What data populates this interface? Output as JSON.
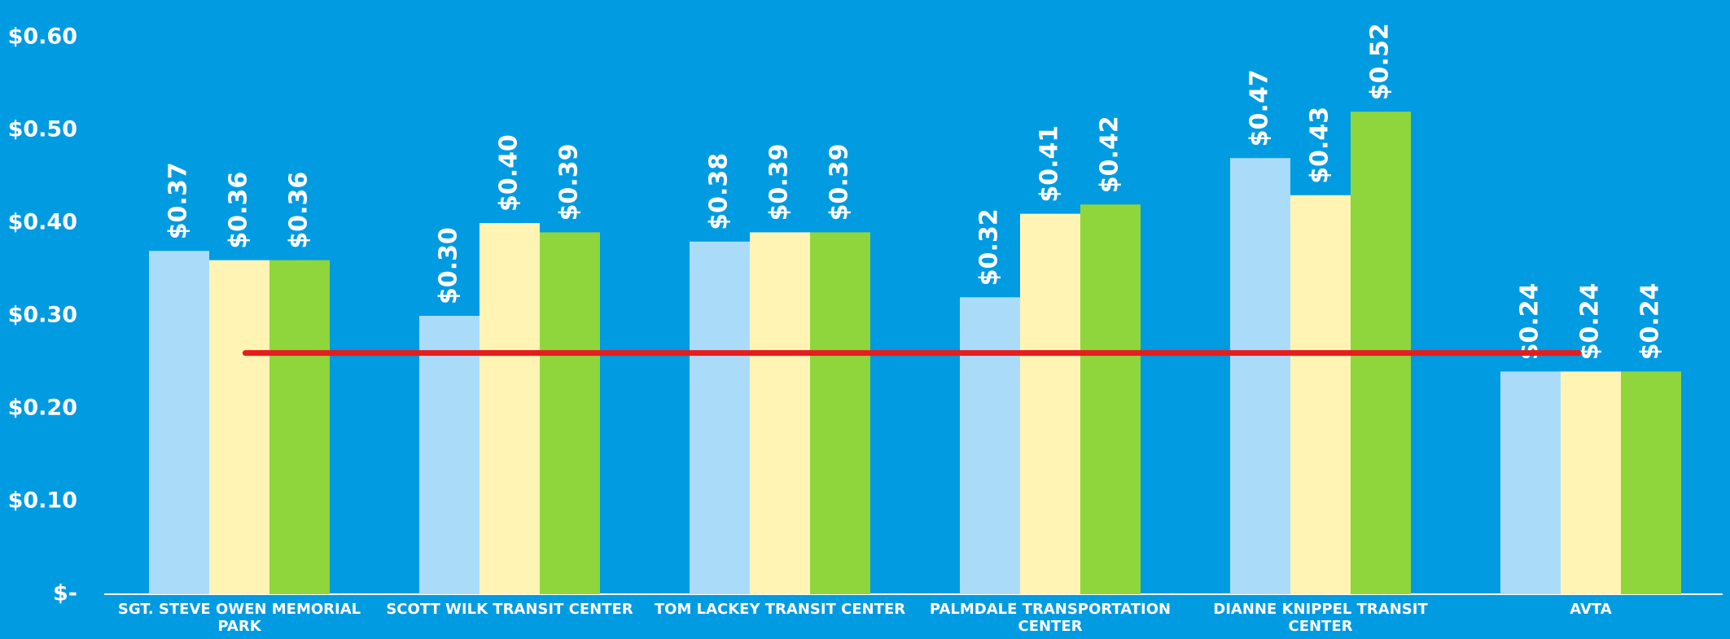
{
  "chart_data": {
    "type": "bar",
    "categories": [
      "SGT. STEVE OWEN MEMORIAL PARK",
      "SCOTT WILK TRANSIT CENTER",
      "TOM LACKEY TRANSIT CENTER",
      "PALMDALE TRANSPORTATION CENTER",
      "DIANNE KNIPPEL TRANSIT CENTER",
      "AVTA"
    ],
    "series": [
      {
        "color": "#aadcfa",
        "values": [
          0.37,
          0.3,
          0.38,
          0.32,
          0.47,
          0.24
        ],
        "value_labels": [
          "$0.37",
          "$0.30",
          "$0.38",
          "$0.32",
          "$0.47",
          "$0.24"
        ]
      },
      {
        "color": "#fff4b4",
        "values": [
          0.36,
          0.4,
          0.39,
          0.41,
          0.43,
          0.24
        ],
        "value_labels": [
          "$0.36",
          "$0.40",
          "$0.39",
          "$0.41",
          "$0.43",
          "$0.24"
        ]
      },
      {
        "color": "#8fd63c",
        "values": [
          0.36,
          0.39,
          0.39,
          0.42,
          0.52,
          0.24
        ],
        "value_labels": [
          "$0.36",
          "$0.39",
          "$0.39",
          "$0.42",
          "$0.52",
          "$0.24"
        ]
      }
    ],
    "reference_line": {
      "value": 0.26,
      "color": "#e41e1e"
    },
    "ylim": [
      0,
      0.6
    ],
    "yticks": [
      {
        "value": 0,
        "label": "$-"
      },
      {
        "value": 0.1,
        "label": "$0.10"
      },
      {
        "value": 0.2,
        "label": "$0.20"
      },
      {
        "value": 0.3,
        "label": "$0.30"
      },
      {
        "value": 0.4,
        "label": "$0.40"
      },
      {
        "value": 0.5,
        "label": "$0.50"
      },
      {
        "value": 0.6,
        "label": "$0.60"
      }
    ],
    "grid": false
  }
}
